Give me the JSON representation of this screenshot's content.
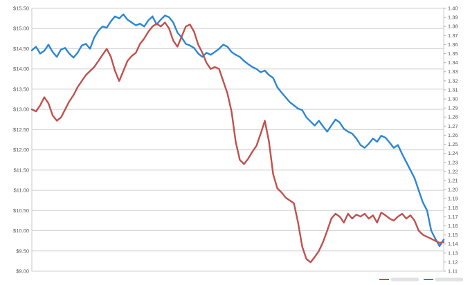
{
  "chart_data": {
    "type": "line",
    "title": "",
    "xlabel": "",
    "ylabel": "",
    "grid": true,
    "legend_position": "bottom-right",
    "y_left": {
      "ylim": [
        9.0,
        15.5
      ],
      "ticks": [
        "$9.00",
        "$9.50",
        "$10.00",
        "$10.50",
        "$11.00",
        "$11.50",
        "$12.00",
        "$12.50",
        "$13.00",
        "$13.50",
        "$14.00",
        "$14.50",
        "$15.00",
        "$15.50"
      ]
    },
    "y_right": {
      "ylim": [
        1.11,
        1.4
      ],
      "ticks": [
        "1.11",
        "1.12",
        "1.13",
        "1.14",
        "1.15",
        "1.16",
        "1.17",
        "1.18",
        "1.19",
        "1.20",
        "1.21",
        "1.22",
        "1.23",
        "1.24",
        "1.25",
        "1.26",
        "1.27",
        "1.28",
        "1.29",
        "1.30",
        "1.31",
        "1.32",
        "1.33",
        "1.34",
        "1.35",
        "1.36",
        "1.37",
        "1.38",
        "1.39",
        "1.40"
      ]
    },
    "series": [
      {
        "axis": "left",
        "color": "#2a86d6",
        "points": [
          [
            0,
            14.46
          ],
          [
            2,
            14.55
          ],
          [
            4,
            14.38
          ],
          [
            6,
            14.45
          ],
          [
            8,
            14.6
          ],
          [
            10,
            14.42
          ],
          [
            12,
            14.3
          ],
          [
            14,
            14.48
          ],
          [
            16,
            14.52
          ],
          [
            18,
            14.38
          ],
          [
            20,
            14.28
          ],
          [
            22,
            14.4
          ],
          [
            24,
            14.58
          ],
          [
            26,
            14.62
          ],
          [
            28,
            14.5
          ],
          [
            30,
            14.78
          ],
          [
            32,
            14.95
          ],
          [
            34,
            15.05
          ],
          [
            36,
            15.02
          ],
          [
            38,
            15.18
          ],
          [
            40,
            15.3
          ],
          [
            42,
            15.25
          ],
          [
            44,
            15.35
          ],
          [
            46,
            15.22
          ],
          [
            48,
            15.15
          ],
          [
            50,
            15.08
          ],
          [
            52,
            15.12
          ],
          [
            54,
            15.05
          ],
          [
            56,
            15.2
          ],
          [
            58,
            15.3
          ],
          [
            60,
            15.1
          ],
          [
            62,
            15.22
          ],
          [
            64,
            15.32
          ],
          [
            66,
            15.28
          ],
          [
            68,
            15.15
          ],
          [
            70,
            14.9
          ],
          [
            72,
            14.78
          ],
          [
            74,
            14.62
          ],
          [
            76,
            14.58
          ],
          [
            78,
            14.52
          ],
          [
            80,
            14.38
          ],
          [
            82,
            14.3
          ],
          [
            84,
            14.4
          ],
          [
            86,
            14.35
          ],
          [
            88,
            14.42
          ],
          [
            90,
            14.5
          ],
          [
            92,
            14.6
          ],
          [
            94,
            14.55
          ],
          [
            96,
            14.42
          ],
          [
            98,
            14.35
          ],
          [
            100,
            14.3
          ],
          [
            102,
            14.2
          ],
          [
            104,
            14.12
          ],
          [
            106,
            14.05
          ],
          [
            108,
            14.0
          ],
          [
            110,
            13.92
          ],
          [
            112,
            13.96
          ],
          [
            114,
            13.85
          ],
          [
            116,
            13.78
          ],
          [
            118,
            13.55
          ],
          [
            120,
            13.42
          ],
          [
            122,
            13.3
          ],
          [
            124,
            13.18
          ],
          [
            126,
            13.1
          ],
          [
            128,
            13.02
          ],
          [
            130,
            12.98
          ],
          [
            132,
            12.8
          ],
          [
            134,
            12.7
          ],
          [
            136,
            12.6
          ],
          [
            138,
            12.72
          ],
          [
            140,
            12.58
          ],
          [
            142,
            12.45
          ],
          [
            144,
            12.6
          ],
          [
            146,
            12.75
          ],
          [
            148,
            12.68
          ],
          [
            150,
            12.52
          ],
          [
            152,
            12.45
          ],
          [
            154,
            12.4
          ],
          [
            156,
            12.28
          ],
          [
            158,
            12.12
          ],
          [
            160,
            12.05
          ],
          [
            162,
            12.15
          ],
          [
            164,
            12.28
          ],
          [
            166,
            12.2
          ],
          [
            168,
            12.35
          ],
          [
            170,
            12.3
          ],
          [
            172,
            12.18
          ],
          [
            174,
            12.05
          ],
          [
            176,
            12.12
          ],
          [
            178,
            11.9
          ],
          [
            180,
            11.7
          ],
          [
            182,
            11.5
          ],
          [
            184,
            11.3
          ],
          [
            186,
            11.0
          ],
          [
            188,
            10.7
          ],
          [
            190,
            10.5
          ],
          [
            192,
            10.0
          ],
          [
            194,
            9.8
          ],
          [
            196,
            9.62
          ],
          [
            198,
            9.78
          ]
        ]
      },
      {
        "axis": "left",
        "color": "#c0504d",
        "points": [
          [
            0,
            13.0
          ],
          [
            2,
            12.95
          ],
          [
            4,
            13.1
          ],
          [
            6,
            13.3
          ],
          [
            8,
            13.15
          ],
          [
            10,
            12.85
          ],
          [
            12,
            12.72
          ],
          [
            14,
            12.8
          ],
          [
            16,
            13.0
          ],
          [
            18,
            13.2
          ],
          [
            20,
            13.35
          ],
          [
            22,
            13.55
          ],
          [
            24,
            13.7
          ],
          [
            26,
            13.85
          ],
          [
            28,
            13.95
          ],
          [
            30,
            14.05
          ],
          [
            32,
            14.2
          ],
          [
            34,
            14.35
          ],
          [
            36,
            14.5
          ],
          [
            38,
            14.3
          ],
          [
            40,
            13.95
          ],
          [
            42,
            13.7
          ],
          [
            44,
            13.95
          ],
          [
            46,
            14.2
          ],
          [
            48,
            14.32
          ],
          [
            50,
            14.4
          ],
          [
            52,
            14.62
          ],
          [
            54,
            14.75
          ],
          [
            56,
            14.92
          ],
          [
            58,
            15.05
          ],
          [
            60,
            15.12
          ],
          [
            62,
            15.05
          ],
          [
            64,
            15.15
          ],
          [
            66,
            15.0
          ],
          [
            68,
            14.7
          ],
          [
            70,
            14.55
          ],
          [
            72,
            14.8
          ],
          [
            74,
            15.05
          ],
          [
            76,
            15.1
          ],
          [
            78,
            14.92
          ],
          [
            80,
            14.6
          ],
          [
            82,
            14.4
          ],
          [
            84,
            14.15
          ],
          [
            86,
            14.0
          ],
          [
            88,
            14.05
          ],
          [
            90,
            14.0
          ],
          [
            92,
            13.7
          ],
          [
            94,
            13.4
          ],
          [
            96,
            12.95
          ],
          [
            98,
            12.2
          ],
          [
            100,
            11.75
          ],
          [
            102,
            11.65
          ],
          [
            104,
            11.78
          ],
          [
            106,
            11.95
          ],
          [
            108,
            12.1
          ],
          [
            110,
            12.4
          ],
          [
            112,
            12.72
          ],
          [
            114,
            12.2
          ],
          [
            116,
            11.4
          ],
          [
            118,
            11.05
          ],
          [
            120,
            10.95
          ],
          [
            122,
            10.82
          ],
          [
            124,
            10.75
          ],
          [
            126,
            10.68
          ],
          [
            128,
            10.2
          ],
          [
            130,
            9.6
          ],
          [
            132,
            9.3
          ],
          [
            134,
            9.22
          ],
          [
            136,
            9.35
          ],
          [
            138,
            9.5
          ],
          [
            140,
            9.72
          ],
          [
            142,
            10.0
          ],
          [
            144,
            10.3
          ],
          [
            146,
            10.42
          ],
          [
            148,
            10.35
          ],
          [
            150,
            10.2
          ],
          [
            152,
            10.42
          ],
          [
            154,
            10.3
          ],
          [
            156,
            10.4
          ],
          [
            158,
            10.35
          ],
          [
            160,
            10.42
          ],
          [
            162,
            10.3
          ],
          [
            164,
            10.38
          ],
          [
            166,
            10.2
          ],
          [
            168,
            10.45
          ],
          [
            170,
            10.38
          ],
          [
            172,
            10.3
          ],
          [
            174,
            10.25
          ],
          [
            176,
            10.35
          ],
          [
            178,
            10.42
          ],
          [
            180,
            10.3
          ],
          [
            182,
            10.38
          ],
          [
            184,
            10.25
          ],
          [
            186,
            10.0
          ],
          [
            188,
            9.9
          ],
          [
            190,
            9.85
          ],
          [
            192,
            9.8
          ],
          [
            194,
            9.75
          ],
          [
            196,
            9.7
          ],
          [
            198,
            9.72
          ]
        ]
      }
    ],
    "legend": {
      "items": [
        {
          "color": "#c0504d"
        },
        {
          "color": "#2a86d6"
        }
      ]
    }
  }
}
